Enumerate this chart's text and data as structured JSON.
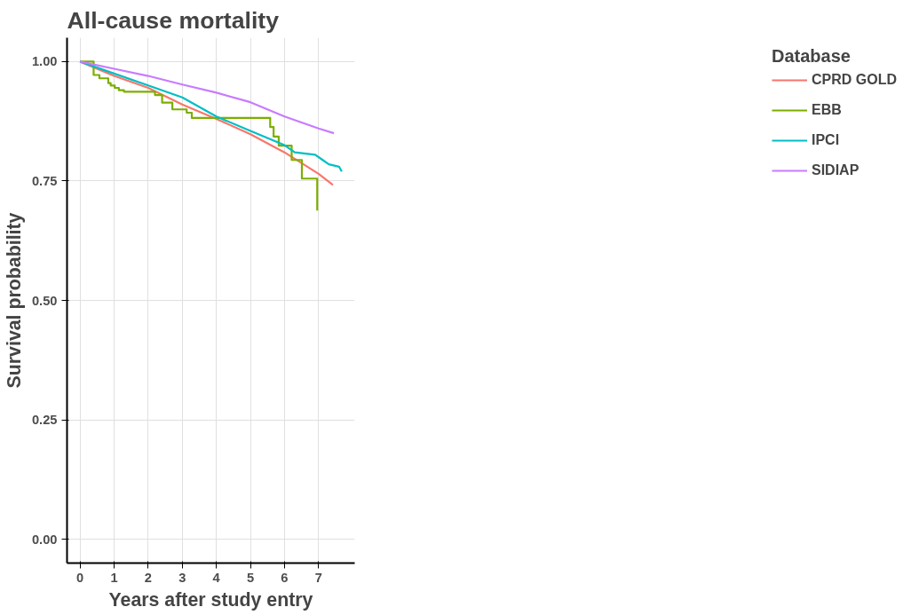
{
  "chart_data": {
    "type": "line",
    "title": "All-cause mortality",
    "xlabel": "Years after study entry",
    "ylabel": "Survival probability",
    "legend_title": "Database",
    "xlim": [
      -0.38,
      8.06
    ],
    "ylim": [
      -0.05,
      1.05
    ],
    "xticks": [
      0,
      1,
      2,
      3,
      4,
      5,
      6,
      7
    ],
    "yticks": [
      {
        "value": 0,
        "label": "0.00"
      },
      {
        "value": 0.25,
        "label": "0.25"
      },
      {
        "value": 0.5,
        "label": "0.50"
      },
      {
        "value": 0.75,
        "label": "0.75"
      },
      {
        "value": 1,
        "label": "1.00"
      }
    ],
    "grid": true,
    "legend": "right",
    "marker": "none",
    "line_style": "solid",
    "series": [
      {
        "name": "CPRD GOLD",
        "color": "#f8766d",
        "x": [
          0,
          1,
          2,
          3,
          4,
          5,
          6,
          7,
          7.42
        ],
        "values": [
          1,
          0.97,
          0.945,
          0.91,
          0.88,
          0.848,
          0.81,
          0.765,
          0.742
        ]
      },
      {
        "name": "EBB",
        "color": "#7cae00",
        "type": "step",
        "x": [
          0,
          0.4,
          0.57,
          0.83,
          0.9,
          1.02,
          1.14,
          1.29,
          2.2,
          2.41,
          2.71,
          3.13,
          3.28,
          5.58,
          5.68,
          5.83,
          6.21,
          6.51,
          6.96
        ],
        "values": [
          1,
          0.972,
          0.965,
          0.955,
          0.95,
          0.945,
          0.94,
          0.937,
          0.93,
          0.914,
          0.9,
          0.893,
          0.882,
          0.863,
          0.843,
          0.824,
          0.794,
          0.755,
          0.688
        ]
      },
      {
        "name": "IPCI",
        "color": "#00bfc4",
        "x": [
          0,
          1,
          2,
          3,
          4,
          5,
          5.5,
          6,
          6.3,
          6.9,
          7.1,
          7.3,
          7.6,
          7.68
        ],
        "values": [
          1,
          0.975,
          0.95,
          0.925,
          0.885,
          0.855,
          0.84,
          0.825,
          0.81,
          0.805,
          0.795,
          0.785,
          0.78,
          0.77
        ]
      },
      {
        "name": "SIDIAP",
        "color": "#c77cff",
        "x": [
          0,
          1,
          2,
          3,
          4,
          5,
          6,
          7,
          7.45
        ],
        "values": [
          1,
          0.985,
          0.97,
          0.952,
          0.935,
          0.915,
          0.885,
          0.86,
          0.85
        ]
      }
    ]
  }
}
